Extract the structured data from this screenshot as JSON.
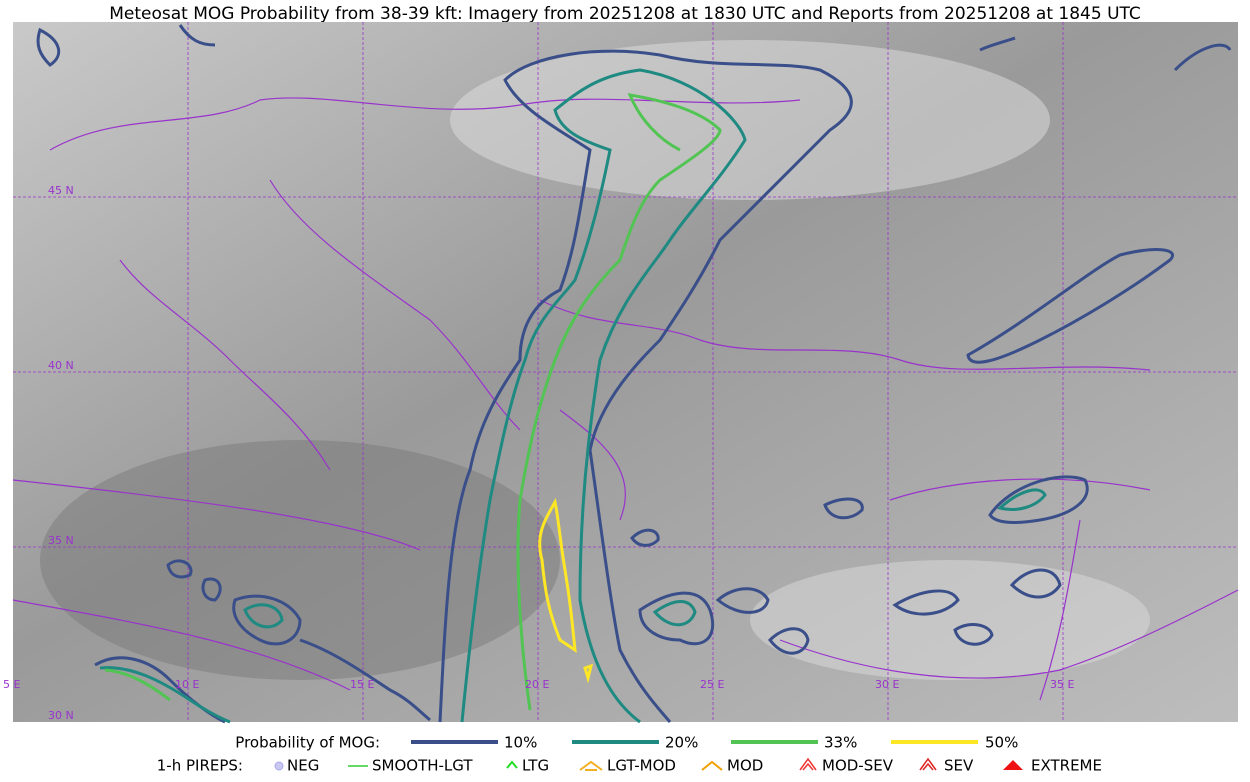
{
  "title": "Meteosat MOG Probability from 38-39 kft: Imagery from 20251208 at 1830 UTC and Reports from 20251208 at 1845 UTC",
  "map": {
    "lat_labels": [
      "45 N",
      "40 N",
      "35 N",
      "30 N"
    ],
    "lon_labels": [
      "5 E",
      "10 E",
      "15 E",
      "20 E",
      "25 E",
      "30 E",
      "35 E"
    ]
  },
  "legend": {
    "probability_label": "Probability of MOG:",
    "probability_items": [
      "10%",
      "20%",
      "33%",
      "50%"
    ],
    "pirep_label": "1-h PIREPS:",
    "pirep_items": [
      "NEG",
      "SMOOTH-LGT",
      "LTG",
      "LGT-MOD",
      "MOD",
      "MOD-SEV",
      "SEV",
      "EXTREME"
    ]
  }
}
